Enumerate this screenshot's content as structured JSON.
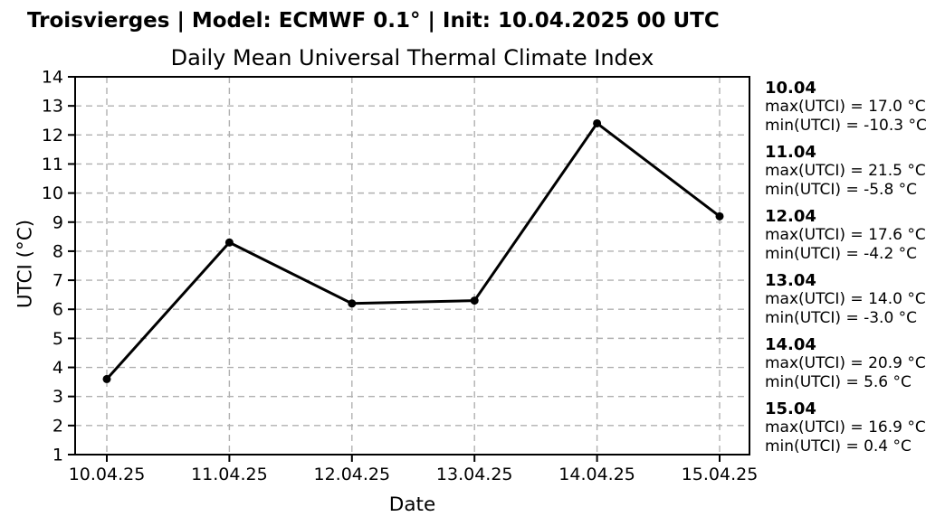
{
  "header": {
    "title": "Troisvierges | Model: ECMWF 0.1° | Init: 10.04.2025 00 UTC"
  },
  "chart": {
    "title": "Daily Mean Universal Thermal Climate Index",
    "xlabel": "Date",
    "ylabel": "UTCI (°C)"
  },
  "chart_data": {
    "type": "line",
    "title": "Daily Mean Universal Thermal Climate Index",
    "xlabel": "Date",
    "ylabel": "UTCI (°C)",
    "categories": [
      "10.04.25",
      "11.04.25",
      "12.04.25",
      "13.04.25",
      "14.04.25",
      "15.04.25"
    ],
    "values": [
      3.6,
      8.3,
      6.2,
      6.3,
      12.4,
      9.2
    ],
    "ylim": [
      1,
      14
    ],
    "yticks": [
      1,
      2,
      3,
      4,
      5,
      6,
      7,
      8,
      9,
      10,
      11,
      12,
      13,
      14
    ],
    "grid": true,
    "grid_style": "dashed",
    "legend": "none",
    "line_color": "#000000",
    "marker": "circle"
  },
  "annotations": [
    {
      "date": "10.04",
      "max_label": "max(UTCI) = 17.0 °C",
      "min_label": "min(UTCI) = -10.3 °C"
    },
    {
      "date": "11.04",
      "max_label": "max(UTCI) = 21.5 °C",
      "min_label": "min(UTCI) = -5.8 °C"
    },
    {
      "date": "12.04",
      "max_label": "max(UTCI) = 17.6 °C",
      "min_label": "min(UTCI) = -4.2 °C"
    },
    {
      "date": "13.04",
      "max_label": "max(UTCI) = 14.0 °C",
      "min_label": "min(UTCI) = -3.0 °C"
    },
    {
      "date": "14.04",
      "max_label": "max(UTCI) = 20.9 °C",
      "min_label": "min(UTCI) = 5.6 °C"
    },
    {
      "date": "15.04",
      "max_label": "max(UTCI) = 16.9 °C",
      "min_label": "min(UTCI) = 0.4 °C"
    }
  ],
  "colors": {
    "background": "#ffffff",
    "text": "#000000",
    "grid": "#b0b0b0",
    "line": "#000000",
    "marker": "#000000",
    "spine": "#000000"
  }
}
